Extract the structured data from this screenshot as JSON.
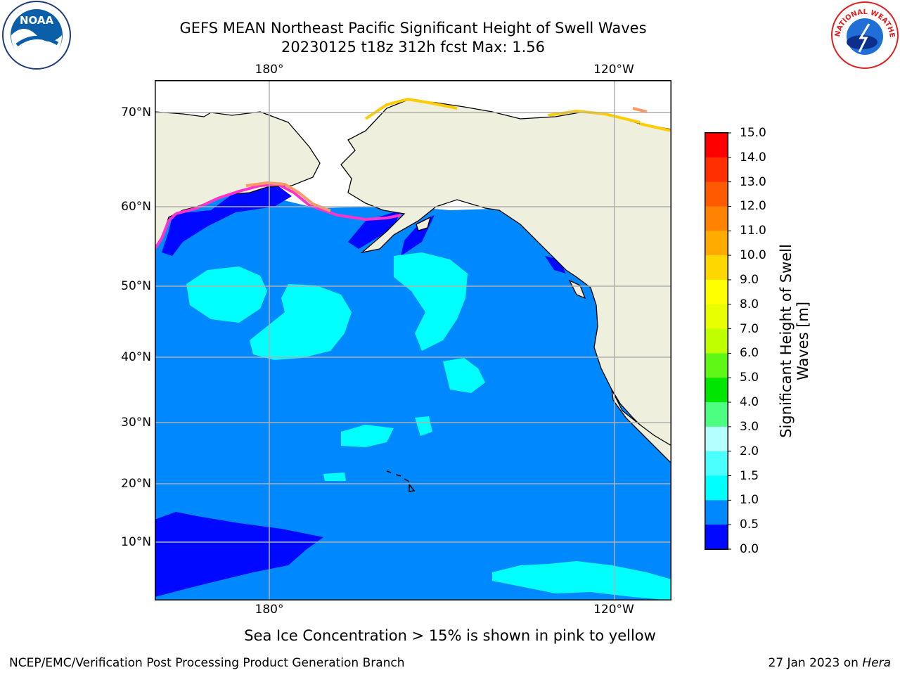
{
  "title_line1": "GEFS MEAN Northeast Pacific Significant Height of Swell Waves",
  "title_line2": "20230125 t18z 312h fcst   Max: 1.56",
  "lon_labels_top": [
    "180°",
    "120°W"
  ],
  "lon_labels_bottom": [
    "180°",
    "120°W"
  ],
  "lat_labels": [
    "70°N",
    "60°N",
    "50°N",
    "40°N",
    "30°N",
    "20°N",
    "10°N"
  ],
  "colorbar": {
    "label": "Significant Height of Swell Waves [m]",
    "label_line1": "Significant Height of Swell",
    "label_line2": "Waves [m]",
    "ticks": [
      "15.0",
      "14.0",
      "13.0",
      "12.0",
      "11.0",
      "10.0",
      "9.0",
      "8.0",
      "7.0",
      "6.0",
      "5.0",
      "4.0",
      "3.0",
      "2.0",
      "1.5",
      "1.0",
      "0.5",
      "0.0"
    ],
    "colors": [
      "#ff0000",
      "#ff2f00",
      "#ff5a00",
      "#ff8200",
      "#ffab00",
      "#ffd700",
      "#ffff00",
      "#e7ff00",
      "#bfff00",
      "#5ef716",
      "#00e600",
      "#4cff80",
      "#b4ffff",
      "#4bffff",
      "#00ffff",
      "#0088ff",
      "#0008ff"
    ]
  },
  "map": {
    "ocean_color": "#0088ff",
    "deep_color": "#0008ff",
    "swell_color": "#00ffff",
    "land_color": "#efefdd",
    "ice_colors": [
      "#ff33cc",
      "#ff9966",
      "#ffcc00"
    ]
  },
  "sea_ice_note": "Sea Ice Concentration > 15% is shown in pink to yellow",
  "footer_left": "NCEP/EMC/Verification Post Processing Product Generation Branch",
  "footer_right_prefix": "27 Jan 2023 on ",
  "footer_right_host": "Hera",
  "logos": {
    "left": "NOAA",
    "right_text": "NATIONAL WEATHER SERVICE"
  }
}
